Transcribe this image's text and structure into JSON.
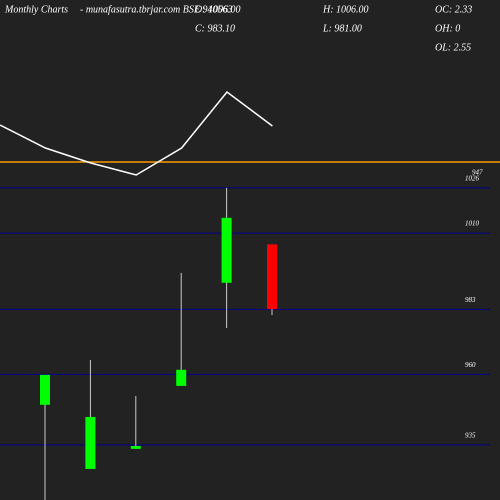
{
  "header": {
    "title": "Monthly Charts",
    "source": "- munafasutra.tbrjar.com  BSE 940563",
    "stats": [
      "O: 1006.00",
      "C: 983.10",
      "H: 1006.00",
      "L: 981.00",
      "OC: 2.33",
      "OH: 0",
      "OL: 2.55"
    ]
  },
  "chart_data": [
    {
      "type": "line",
      "values": [
        956.25,
        950.5,
        946.75,
        943.75,
        950.5,
        964.5,
        956
      ],
      "color": "#ffffff",
      "ylim": [
        940,
        975
      ],
      "reference_line": 947,
      "reference_color": "#ff9900"
    },
    {
      "type": "candlestick",
      "open": [
        949.2,
        926.5,
        933.6,
        955.9,
        992.4,
        1006
      ],
      "high": [
        959.8,
        965.1,
        952.3,
        995.9,
        1026,
        1006
      ],
      "low": [
        915,
        926.5,
        933.6,
        955.9,
        976.4,
        981
      ],
      "close": [
        959.8,
        944.9,
        934.6,
        961.6,
        1015.4,
        983.1
      ],
      "up_color": "#00ff00",
      "down_color": "#ff0000",
      "wick_color": "#cccccc",
      "ylim": [
        915.5,
        1028.8
      ],
      "yticks": [
        1026,
        1010,
        983,
        960,
        935
      ],
      "grid_color": "#00008b"
    }
  ]
}
